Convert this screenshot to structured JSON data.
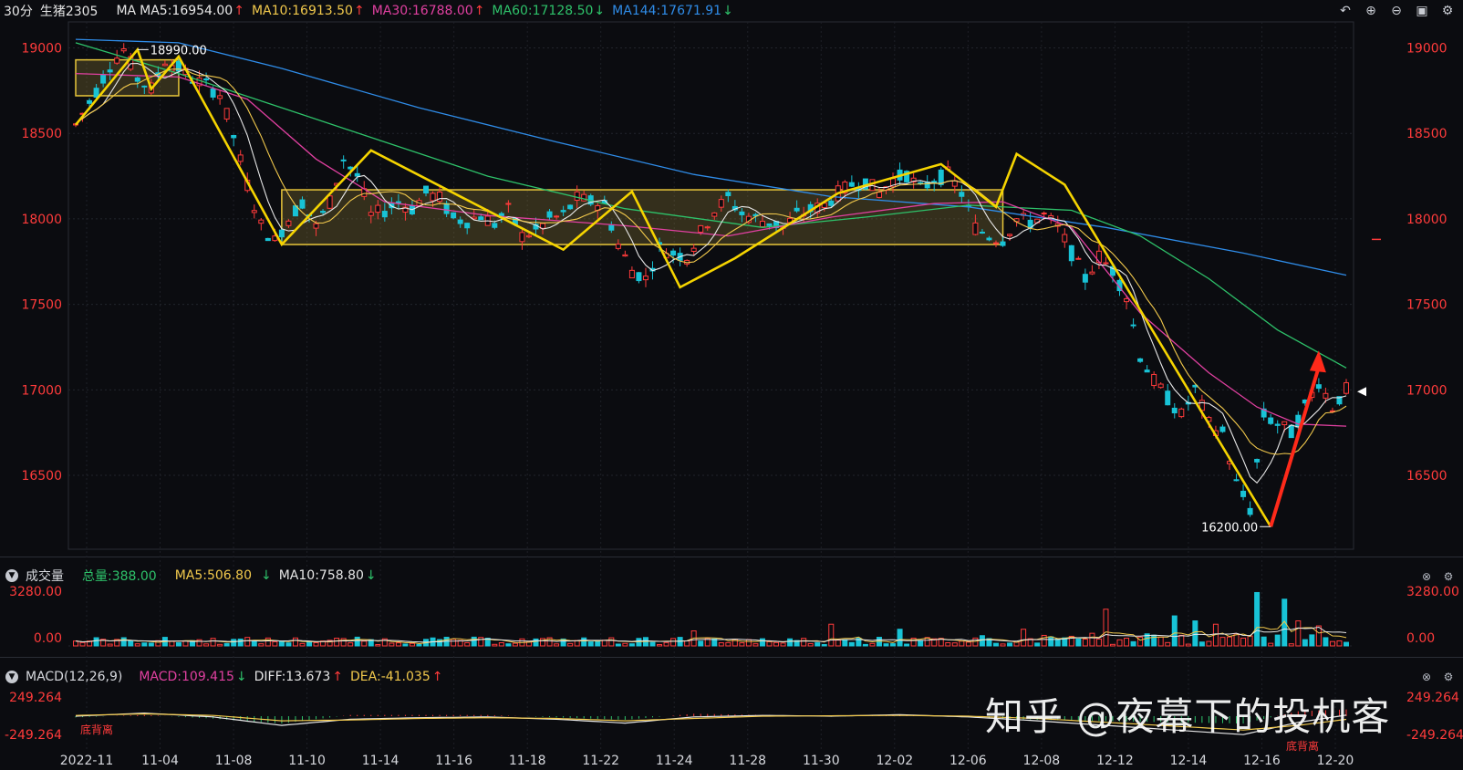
{
  "header": {
    "period": "30分",
    "symbol": "生猪2305",
    "ma_label": "MA",
    "ma_values": [
      {
        "text": "MA5:16954.00",
        "arrow": "↑",
        "color": "#e8e8e8",
        "arrow_color": "#ff3b3b"
      },
      {
        "text": "MA10:16913.50",
        "arrow": "↑",
        "color": "#f2c94c",
        "arrow_color": "#ff3b3b"
      },
      {
        "text": "MA30:16788.00",
        "arrow": "↑",
        "color": "#e040a0",
        "arrow_color": "#ff3b3b"
      },
      {
        "text": "MA60:17128.50",
        "arrow": "↓",
        "color": "#2ec26a",
        "arrow_color": "#2ec26a"
      },
      {
        "text": "MA144:17671.91",
        "arrow": "↓",
        "color": "#2f8ce8",
        "arrow_color": "#2ec26a"
      }
    ],
    "toolbar_icons": [
      "undo-icon",
      "zoom-in-icon",
      "zoom-out-icon",
      "window-icon",
      "settings-icon"
    ]
  },
  "volume_panel": {
    "title": "成交量",
    "total": "总量:388.00",
    "ma5": "MA5:506.80",
    "ma10": "MA10:758.80",
    "arrow5": "↓",
    "arrow10": "↓",
    "y_labels": [
      "3280.00",
      "0.00"
    ]
  },
  "macd_panel": {
    "title": "MACD(12,26,9)",
    "macd": "MACD:109.415",
    "macd_arrow": "↓",
    "diff": "DIFF:13.673",
    "diff_arrow": "↑",
    "dea": "DEA:-41.035",
    "dea_arrow": "↑",
    "y_labels": [
      "249.264",
      "-249.264"
    ],
    "annotations": [
      "底背离",
      "底背离"
    ]
  },
  "watermark": "知乎 @夜幕下的投机客",
  "chart_data": {
    "type": "candlestick",
    "y_ticks": [
      19000,
      18500,
      18000,
      17500,
      17000,
      16500
    ],
    "ylim": [
      16100,
      19120
    ],
    "x_labels": [
      "2022-11",
      "11-04",
      "11-08",
      "11-10",
      "11-14",
      "11-16",
      "11-18",
      "11-22",
      "11-24",
      "11-28",
      "11-30",
      "12-02",
      "12-06",
      "12-08",
      "12-12",
      "12-14",
      "12-16",
      "12-20"
    ],
    "annotations": {
      "high": "18990.00",
      "low": "16200.00"
    },
    "price_path": [
      [
        0,
        18550
      ],
      [
        3,
        18750
      ],
      [
        5,
        18900
      ],
      [
        7,
        18990
      ],
      [
        9,
        18820
      ],
      [
        11,
        18760
      ],
      [
        13,
        18930
      ],
      [
        15,
        18880
      ],
      [
        17,
        18820
      ],
      [
        19,
        18780
      ],
      [
        21,
        18730
      ],
      [
        23,
        18480
      ],
      [
        25,
        18200
      ],
      [
        27,
        17960
      ],
      [
        29,
        17870
      ],
      [
        31,
        18000
      ],
      [
        33,
        18100
      ],
      [
        35,
        17950
      ],
      [
        37,
        18100
      ],
      [
        39,
        18350
      ],
      [
        41,
        18250
      ],
      [
        43,
        18020
      ],
      [
        45,
        18050
      ],
      [
        47,
        18100
      ],
      [
        49,
        18060
      ],
      [
        51,
        18150
      ],
      [
        53,
        18120
      ],
      [
        55,
        18000
      ],
      [
        57,
        17990
      ],
      [
        59,
        18020
      ],
      [
        61,
        17970
      ],
      [
        63,
        18050
      ],
      [
        65,
        17900
      ],
      [
        67,
        17930
      ],
      [
        69,
        18000
      ],
      [
        71,
        18020
      ],
      [
        73,
        18120
      ],
      [
        75,
        18100
      ],
      [
        77,
        18080
      ],
      [
        79,
        17850
      ],
      [
        81,
        17700
      ],
      [
        83,
        17650
      ],
      [
        85,
        17830
      ],
      [
        87,
        17800
      ],
      [
        89,
        17780
      ],
      [
        91,
        17920
      ],
      [
        93,
        18050
      ],
      [
        95,
        18120
      ],
      [
        97,
        18030
      ],
      [
        99,
        18000
      ],
      [
        101,
        17980
      ],
      [
        103,
        17950
      ],
      [
        105,
        18020
      ],
      [
        107,
        18050
      ],
      [
        109,
        18080
      ],
      [
        111,
        18150
      ],
      [
        113,
        18200
      ],
      [
        115,
        18220
      ],
      [
        117,
        18150
      ],
      [
        119,
        18230
      ],
      [
        121,
        18260
      ],
      [
        123,
        18170
      ],
      [
        125,
        18230
      ],
      [
        127,
        18260
      ],
      [
        129,
        18150
      ],
      [
        131,
        17950
      ],
      [
        133,
        17900
      ],
      [
        135,
        17880
      ],
      [
        137,
        18000
      ],
      [
        139,
        17980
      ],
      [
        141,
        18020
      ],
      [
        143,
        17950
      ],
      [
        145,
        17800
      ],
      [
        147,
        17650
      ],
      [
        149,
        17780
      ],
      [
        151,
        17700
      ],
      [
        153,
        17550
      ],
      [
        155,
        17200
      ],
      [
        157,
        17050
      ],
      [
        159,
        16950
      ],
      [
        161,
        16850
      ],
      [
        163,
        17000
      ],
      [
        165,
        16800
      ],
      [
        167,
        16750
      ],
      [
        169,
        16450
      ],
      [
        171,
        16300
      ],
      [
        173,
        16850
      ],
      [
        175,
        16800
      ],
      [
        177,
        16750
      ],
      [
        179,
        16900
      ],
      [
        181,
        17050
      ],
      [
        183,
        16900
      ],
      [
        185,
        17000
      ]
    ],
    "ma_lines": [
      {
        "name": "MA144",
        "color": "#2f8ce8",
        "points": [
          [
            0,
            19050
          ],
          [
            15,
            19030
          ],
          [
            30,
            18880
          ],
          [
            50,
            18650
          ],
          [
            70,
            18450
          ],
          [
            90,
            18260
          ],
          [
            110,
            18130
          ],
          [
            130,
            18070
          ],
          [
            150,
            17950
          ],
          [
            170,
            17800
          ],
          [
            185,
            17671
          ]
        ]
      },
      {
        "name": "MA60",
        "color": "#2ec26a",
        "points": [
          [
            0,
            19030
          ],
          [
            15,
            18850
          ],
          [
            30,
            18650
          ],
          [
            45,
            18450
          ],
          [
            60,
            18250
          ],
          [
            80,
            18060
          ],
          [
            100,
            17950
          ],
          [
            115,
            18010
          ],
          [
            130,
            18080
          ],
          [
            145,
            18050
          ],
          [
            155,
            17900
          ],
          [
            165,
            17650
          ],
          [
            175,
            17350
          ],
          [
            185,
            17128
          ]
        ]
      },
      {
        "name": "MA30",
        "color": "#e040a0",
        "points": [
          [
            0,
            18850
          ],
          [
            15,
            18830
          ],
          [
            25,
            18700
          ],
          [
            35,
            18350
          ],
          [
            45,
            18100
          ],
          [
            60,
            18020
          ],
          [
            80,
            17960
          ],
          [
            95,
            17900
          ],
          [
            110,
            18010
          ],
          [
            125,
            18090
          ],
          [
            135,
            18100
          ],
          [
            145,
            17950
          ],
          [
            155,
            17450
          ],
          [
            165,
            17100
          ],
          [
            172,
            16900
          ],
          [
            178,
            16800
          ],
          [
            185,
            16788
          ]
        ]
      }
    ],
    "trend_lines": [
      {
        "color": "#f5d400",
        "points": [
          [
            0,
            18550
          ],
          [
            9,
            18990
          ],
          [
            11,
            18760
          ],
          [
            15,
            18950
          ],
          [
            30,
            17850
          ],
          [
            43,
            18400
          ],
          [
            71,
            17820
          ],
          [
            81,
            18160
          ],
          [
            88,
            17600
          ],
          [
            96,
            17770
          ],
          [
            111,
            18150
          ],
          [
            126,
            18320
          ],
          [
            134,
            18070
          ],
          [
            137,
            18380
          ],
          [
            144,
            18200
          ],
          [
            174,
            16200
          ]
        ]
      }
    ],
    "arrow": {
      "color": "#ff2a1a",
      "from": [
        174,
        16200
      ],
      "to": [
        181,
        17230
      ]
    },
    "boxes": [
      {
        "x0": 0,
        "x1": 15,
        "y0": 18720,
        "y1": 18930
      },
      {
        "x0": 30,
        "x1": 135,
        "y0": 17850,
        "y1": 18170
      }
    ],
    "volume": {
      "ylim": [
        0,
        3280
      ],
      "bars": [
        [
          90,
          900
        ],
        [
          110,
          1300
        ],
        [
          120,
          1000
        ],
        [
          138,
          1000
        ],
        [
          150,
          2200
        ],
        [
          160,
          1800
        ],
        [
          163,
          1500
        ],
        [
          166,
          1300
        ],
        [
          172,
          3200
        ],
        [
          176,
          2800
        ],
        [
          178,
          1500
        ],
        [
          181,
          1200
        ]
      ]
    },
    "macd": {
      "ylim": [
        -249.264,
        249.264
      ],
      "diff": [
        [
          0,
          0
        ],
        [
          10,
          40
        ],
        [
          20,
          -10
        ],
        [
          30,
          -120
        ],
        [
          40,
          -40
        ],
        [
          50,
          -20
        ],
        [
          60,
          -10
        ],
        [
          70,
          -40
        ],
        [
          80,
          -90
        ],
        [
          90,
          -10
        ],
        [
          100,
          10
        ],
        [
          110,
          0
        ],
        [
          120,
          20
        ],
        [
          130,
          -10
        ],
        [
          140,
          -60
        ],
        [
          150,
          -120
        ],
        [
          160,
          -180
        ],
        [
          170,
          -240
        ],
        [
          178,
          -80
        ],
        [
          185,
          14
        ]
      ],
      "dea": [
        [
          0,
          10
        ],
        [
          10,
          30
        ],
        [
          20,
          10
        ],
        [
          30,
          -60
        ],
        [
          40,
          -50
        ],
        [
          50,
          -30
        ],
        [
          60,
          -20
        ],
        [
          70,
          -30
        ],
        [
          80,
          -60
        ],
        [
          90,
          -30
        ],
        [
          100,
          0
        ],
        [
          110,
          5
        ],
        [
          120,
          10
        ],
        [
          130,
          0
        ],
        [
          140,
          -30
        ],
        [
          150,
          -80
        ],
        [
          160,
          -130
        ],
        [
          170,
          -180
        ],
        [
          178,
          -120
        ],
        [
          185,
          -41
        ]
      ]
    }
  }
}
